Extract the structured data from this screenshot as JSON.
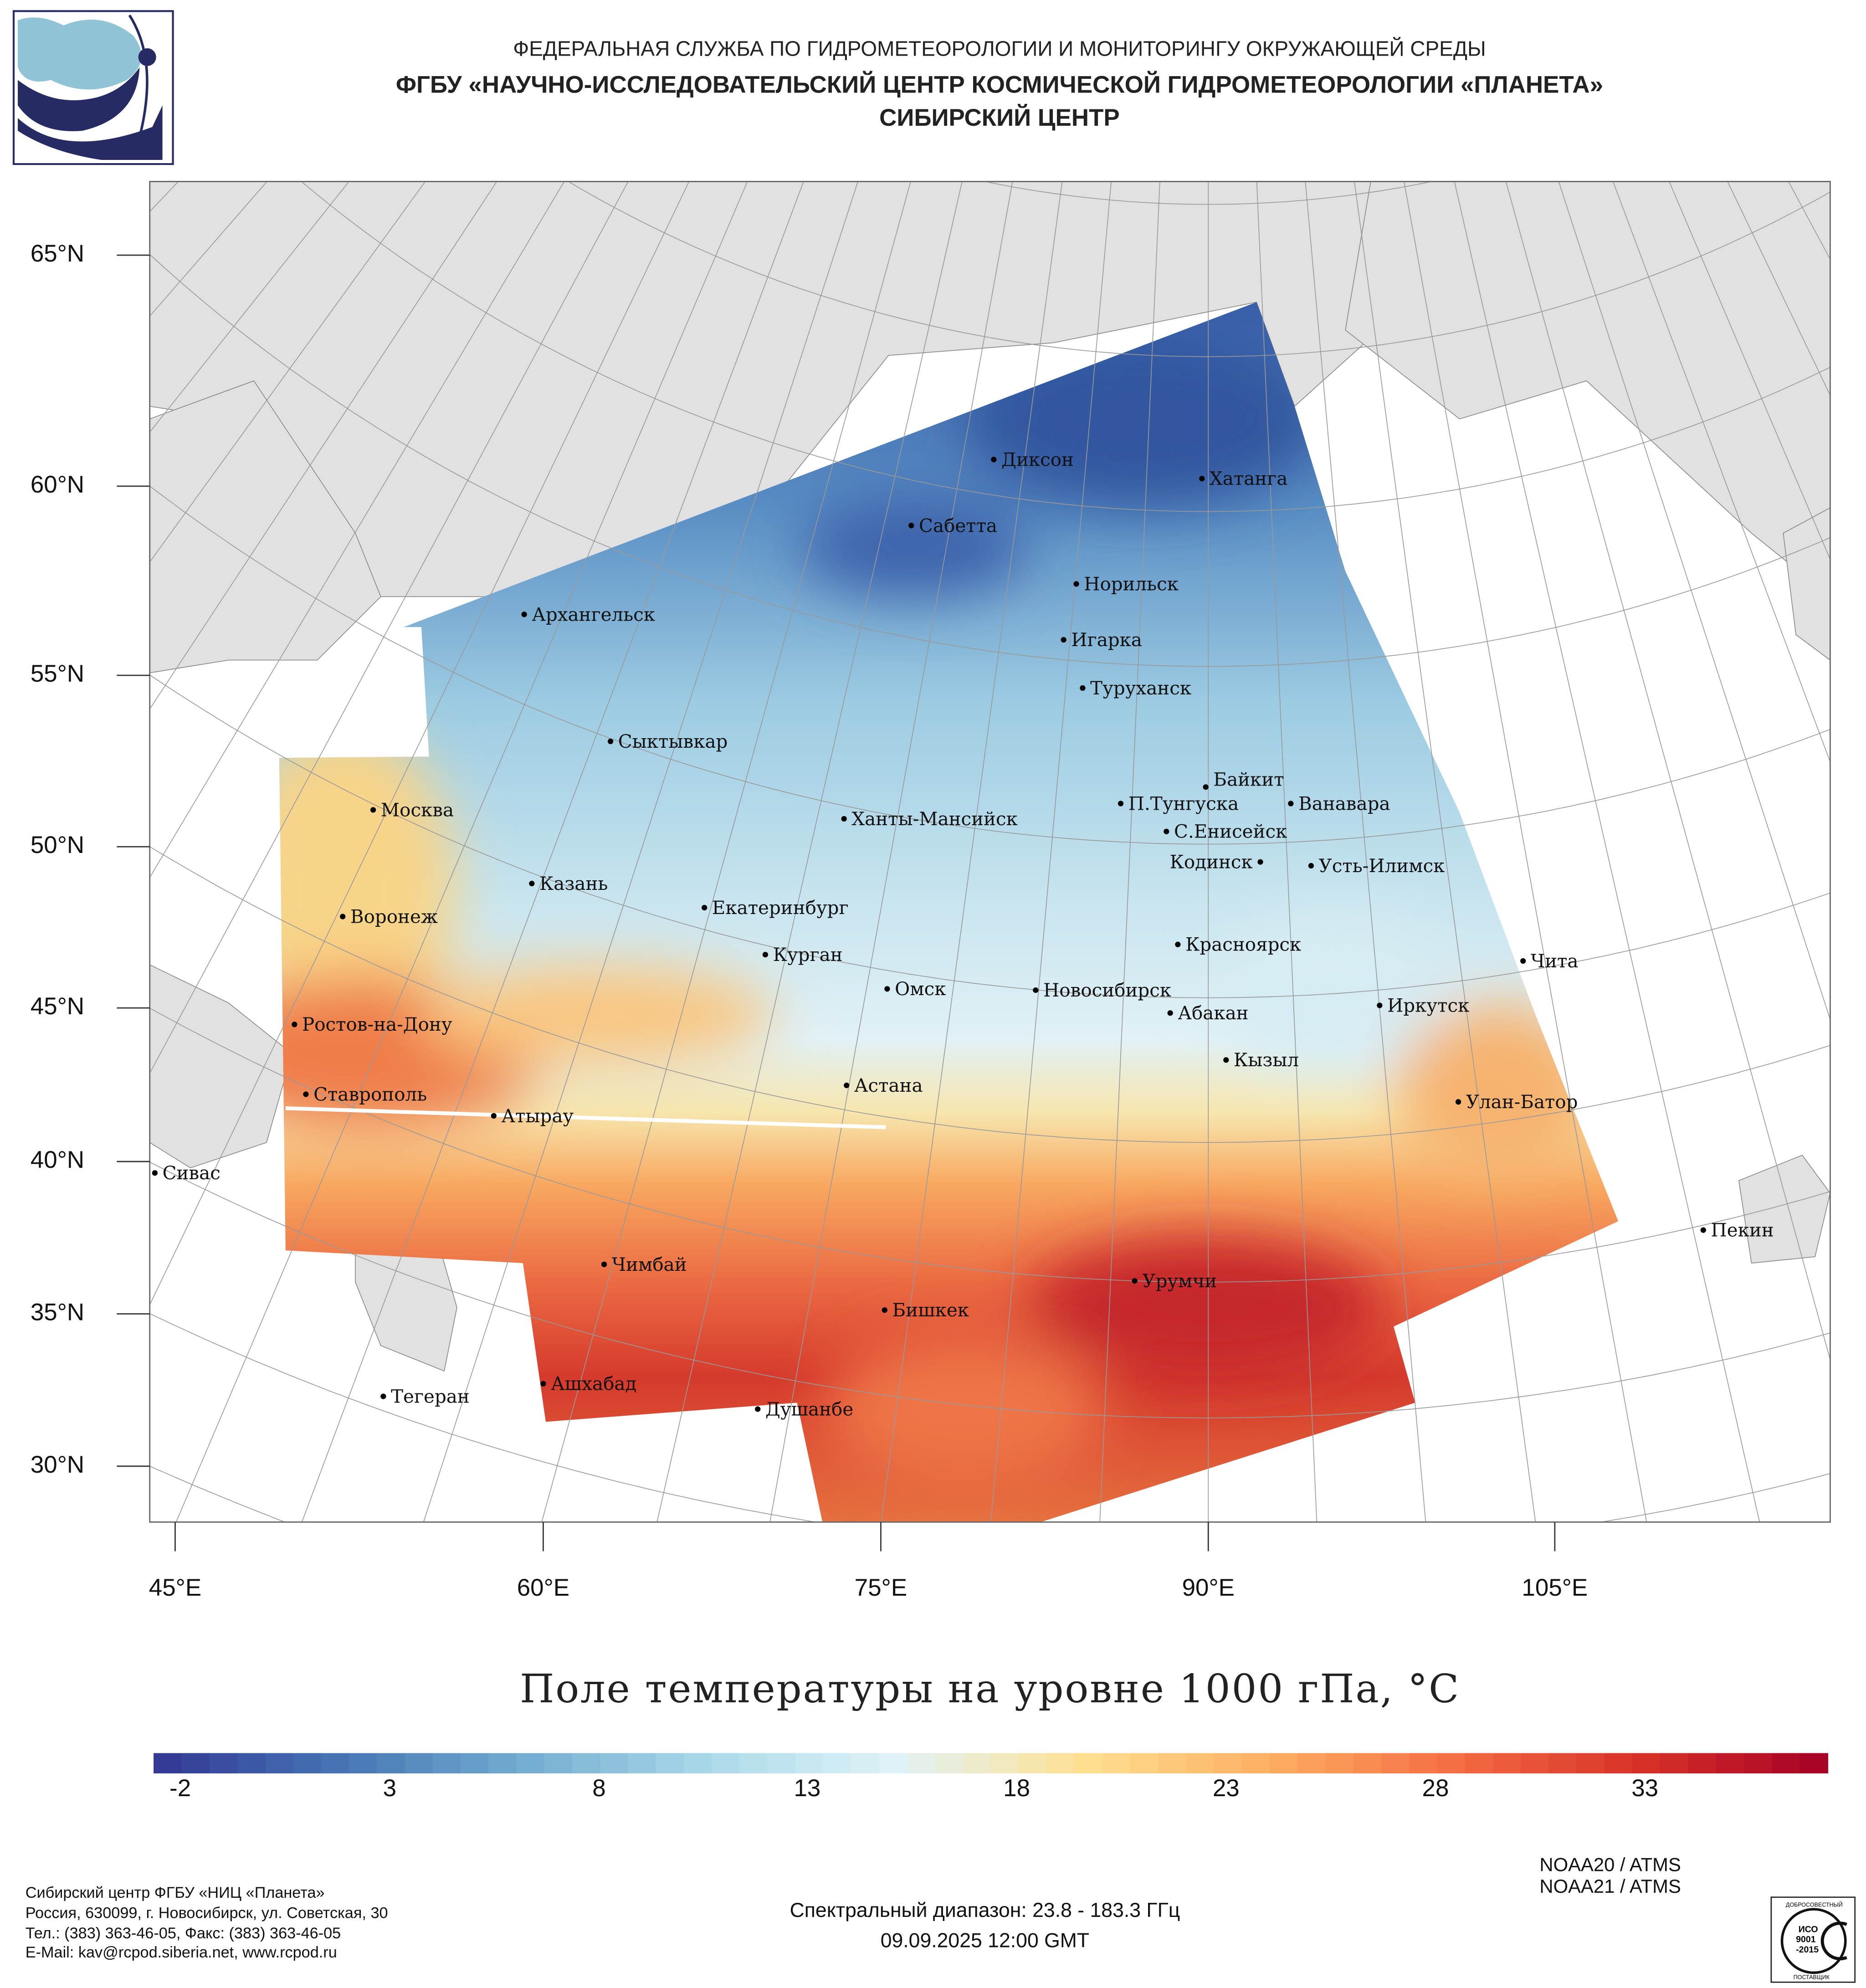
{
  "header": {
    "line1": "ФЕДЕРАЛЬНАЯ СЛУЖБА ПО ГИДРОМЕТЕОРОЛОГИИ И МОНИТОРИНГУ ОКРУЖАЮЩЕЙ СРЕДЫ",
    "line2": "ФГБУ «НАУЧНО-ИССЛЕДОВАТЕЛЬСКИЙ ЦЕНТР КОСМИЧЕСКОЙ ГИДРОМЕТЕОРОЛОГИИ «ПЛАНЕТА»",
    "line3": "СИБИРСКИЙ ЦЕНТР",
    "logo_colors": {
      "light": "#8ec4d6",
      "dark": "#262b63"
    }
  },
  "map": {
    "lat_labels": [
      "65°N",
      "60°N",
      "55°N",
      "50°N",
      "45°N",
      "40°N",
      "35°N",
      "30°N"
    ],
    "lon_labels": [
      "45°E",
      "60°E",
      "75°E",
      "90°E",
      "105°E"
    ],
    "water_color": "#e1e1e1",
    "cities": [
      "Диксон",
      "Хатанга",
      "Сабетта",
      "Архангельск",
      "Норильск",
      "Игарка",
      "Туруханск",
      "Сыктывкар",
      "Байкит",
      "Москва",
      "П.Тунгуска",
      "Ванавара",
      "Ханты-Мансийск",
      "С.Енисейск",
      "Кодинск",
      "Усть-Илимск",
      "Казань",
      "Екатеринбург",
      "Воронеж",
      "Красноярск",
      "Курган",
      "Чита",
      "Омск",
      "Новосибирск",
      "Иркутск",
      "Абакан",
      "Ростов-на-Дону",
      "Кызыл",
      "Астана",
      "Ставрополь",
      "Улан-Батор",
      "Атырау",
      "Сивас",
      "Пекин",
      "Чимбай",
      "Урумчи",
      "Бишкек",
      "Ашхабад",
      "Тегеран",
      "Душанбе"
    ]
  },
  "title": "Поле температуры на уровне 1000 гПа, °C",
  "colorbar": {
    "ticks": [
      "-2",
      "3",
      "8",
      "13",
      "18",
      "23",
      "28",
      "33"
    ],
    "range": [
      -2.5,
      37.5
    ],
    "unit": "°C",
    "palette": [
      "#313695",
      "#4575b4",
      "#74add1",
      "#abd9e9",
      "#e0f3f8",
      "#fee090",
      "#fdae61",
      "#f46d43",
      "#d73027",
      "#a50026"
    ]
  },
  "footer": {
    "org": [
      "Сибирский центр ФГБУ «НИЦ «Планета»",
      "Россия, 630099, г. Новосибирск, ул. Советская, 30",
      "Тел.: (383) 363-46-05, Факс: (383) 363-46-05",
      "E-Mail: kav@rcpod.siberia.net, www.rcpod.ru"
    ],
    "spectral": "Спектральный диапазон: 23.8 - 183.3 ГГц",
    "datetime": "09.09.2025 12:00 GMT",
    "satellites": [
      "NOAA20 / ATMS",
      "NOAA21 / ATMS"
    ],
    "iso": {
      "top": "ДОБРОСОВЕСТНЫЙ",
      "mid": [
        "ИСО",
        "9001",
        "-2015"
      ],
      "bottom": "ПОСТАВЩИК"
    }
  }
}
